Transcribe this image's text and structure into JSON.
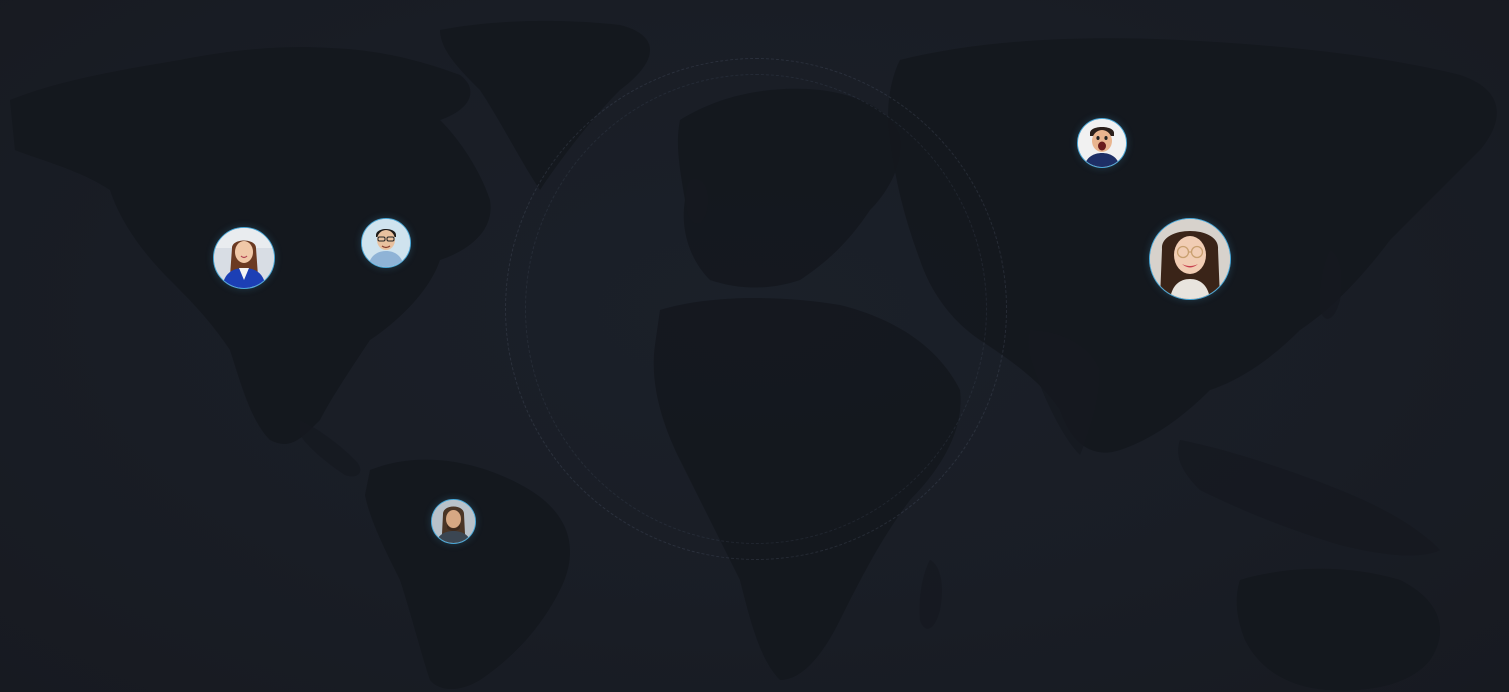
{
  "map": {
    "background_color": "#191d25",
    "land_color": "#14171d",
    "accent_color": "#4aa8d8"
  },
  "users": [
    {
      "label": "user-avatar-north-america-west",
      "icon": "person-woman-blue-blazer"
    },
    {
      "label": "user-avatar-north-america-east",
      "icon": "person-man-glasses"
    },
    {
      "label": "user-avatar-south-america",
      "icon": "person-man-long-hair"
    },
    {
      "label": "user-avatar-russia",
      "icon": "person-man-surprised"
    },
    {
      "label": "user-avatar-east-asia",
      "icon": "person-woman-glasses"
    }
  ]
}
